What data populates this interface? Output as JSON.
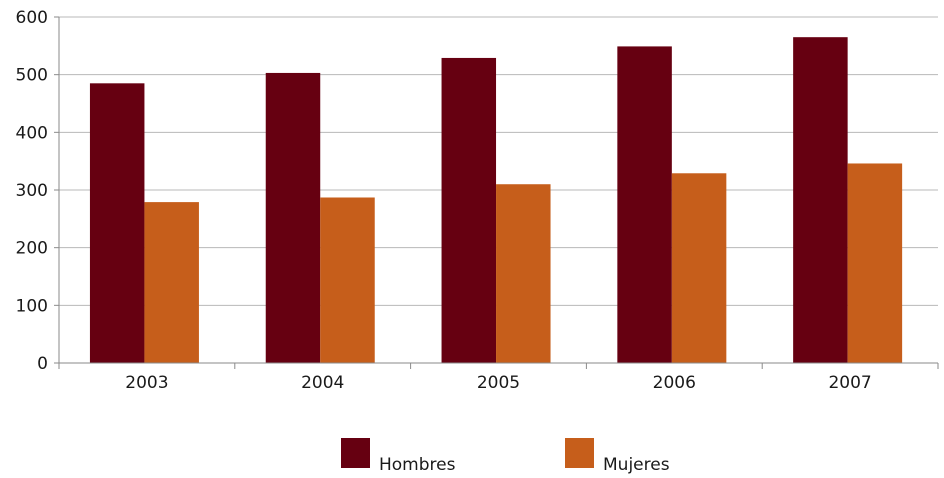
{
  "chart_data": {
    "type": "bar",
    "categories": [
      "2003",
      "2004",
      "2005",
      "2006",
      "2007"
    ],
    "series": [
      {
        "name": "Hombres",
        "color": "#660011",
        "values": [
          485,
          503,
          529,
          549,
          565
        ]
      },
      {
        "name": "Mujeres",
        "color": "#c65e1b",
        "values": [
          279,
          287,
          310,
          329,
          346
        ]
      }
    ],
    "y_ticks": [
      "0",
      "100",
      "200",
      "300",
      "400",
      "500",
      "600"
    ],
    "ylim": [
      0,
      600
    ],
    "grid": true,
    "grid_color": "#b8b8b8",
    "legend": "bottom-center"
  }
}
